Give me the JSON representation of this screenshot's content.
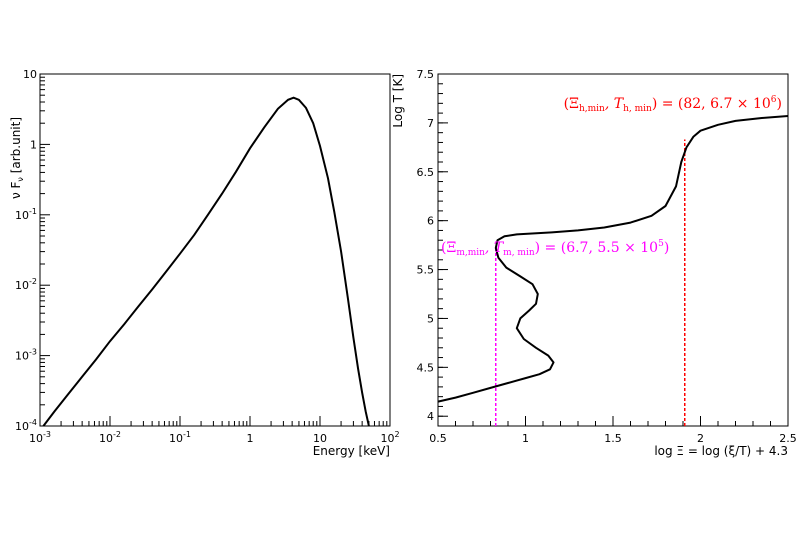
{
  "chart_data": [
    {
      "type": "line",
      "xlabel": "Energy [keV]",
      "ylabel": "ν F_ν [arb.unit]",
      "ylabel_base": "ν F",
      "ylabel_sub": "ν",
      "ylabel_tail": " [arb.unit]",
      "xscale": "log",
      "yscale": "log",
      "xlim": [
        0.001,
        100
      ],
      "ylim": [
        0.0001,
        10
      ],
      "x_ticks": [
        {
          "base": "10",
          "exp": "-3",
          "value": 0.001
        },
        {
          "base": "10",
          "exp": "-2",
          "value": 0.01
        },
        {
          "base": "10",
          "exp": "-1",
          "value": 0.1
        },
        {
          "base": "1",
          "exp": "",
          "value": 1
        },
        {
          "base": "10",
          "exp": "",
          "value": 10
        },
        {
          "base": "10",
          "exp": "2",
          "value": 100
        }
      ],
      "y_ticks": [
        {
          "base": "10",
          "exp": "-4",
          "value": 0.0001
        },
        {
          "base": "10",
          "exp": "-3",
          "value": 0.001
        },
        {
          "base": "10",
          "exp": "-2",
          "value": 0.01
        },
        {
          "base": "10",
          "exp": "-1",
          "value": 0.1
        },
        {
          "base": "1",
          "exp": "",
          "value": 1
        },
        {
          "base": "10",
          "exp": "",
          "value": 10
        }
      ],
      "grid": false,
      "series": [
        {
          "color": "#000000",
          "x": [
            0.00112,
            0.0016,
            0.0025,
            0.004,
            0.0063,
            0.01,
            0.016,
            0.025,
            0.04,
            0.063,
            0.1,
            0.16,
            0.25,
            0.4,
            0.63,
            1.0,
            1.6,
            2.5,
            3.5,
            4.2,
            5.0,
            6.3,
            8.0,
            10,
            13,
            16,
            20,
            25,
            30,
            35,
            40,
            45,
            50
          ],
          "y": [
            0.0001,
            0.00016,
            0.00028,
            0.0005,
            0.00088,
            0.0016,
            0.0028,
            0.0049,
            0.0087,
            0.0155,
            0.028,
            0.052,
            0.1,
            0.2,
            0.41,
            0.88,
            1.75,
            3.2,
            4.3,
            4.6,
            4.3,
            3.3,
            2.0,
            0.95,
            0.33,
            0.11,
            0.03,
            0.0065,
            0.0018,
            0.00065,
            0.0003,
            0.00016,
            0.0001
          ]
        }
      ]
    },
    {
      "type": "line",
      "xlabel": "log Ξ = log (ξ/T) + 4.3",
      "ylabel": "Log T [K]",
      "xlim": [
        0.5,
        2.5
      ],
      "ylim": [
        3.9,
        7.5
      ],
      "x_ticks": [
        "0.5",
        "1",
        "1.5",
        "2",
        "2.5"
      ],
      "y_ticks": [
        "4",
        "4.5",
        "5",
        "5.5",
        "6",
        "6.5",
        "7",
        "7.5"
      ],
      "grid": false,
      "series": [
        {
          "color": "#000000",
          "x": [
            0.5,
            0.6,
            0.7,
            0.8,
            0.9,
            1.0,
            1.08,
            1.14,
            1.16,
            1.13,
            1.06,
            0.99,
            0.95,
            0.97,
            1.02,
            1.06,
            1.07,
            1.04,
            0.97,
            0.89,
            0.845,
            0.83,
            0.84,
            0.88,
            0.95,
            1.05,
            1.15,
            1.3,
            1.45,
            1.6,
            1.72,
            1.8,
            1.86,
            1.89,
            1.92,
            1.96,
            2.0,
            2.1,
            2.2,
            2.35,
            2.5
          ],
          "y": [
            4.15,
            4.19,
            4.24,
            4.29,
            4.34,
            4.39,
            4.43,
            4.48,
            4.55,
            4.62,
            4.7,
            4.79,
            4.9,
            5.0,
            5.08,
            5.15,
            5.25,
            5.35,
            5.43,
            5.52,
            5.62,
            5.72,
            5.8,
            5.84,
            5.86,
            5.87,
            5.88,
            5.9,
            5.93,
            5.98,
            6.05,
            6.15,
            6.35,
            6.6,
            6.75,
            6.86,
            6.92,
            6.98,
            7.02,
            7.05,
            7.07
          ]
        }
      ],
      "markers": [
        {
          "name": "hot-branch-minimum",
          "color": "#ff0000",
          "x": 1.91,
          "y": 6.83,
          "label_main": "(Ξ",
          "label_sub1": "h,min",
          "label_mid": ", T",
          "label_sub2": "h, min",
          "label_tail": ") = (82, 6.7 × 10",
          "label_exp": "6",
          "label_end": ")"
        },
        {
          "name": "middle-branch-minimum",
          "color": "#ff00ff",
          "x": 0.83,
          "y": 5.74,
          "label_main": "(Ξ",
          "label_sub1": "m,min",
          "label_mid": ", T",
          "label_sub2": "m, min",
          "label_tail": ") = (6.7, 5.5 × 10",
          "label_exp": "5",
          "label_end": ")"
        }
      ]
    }
  ]
}
